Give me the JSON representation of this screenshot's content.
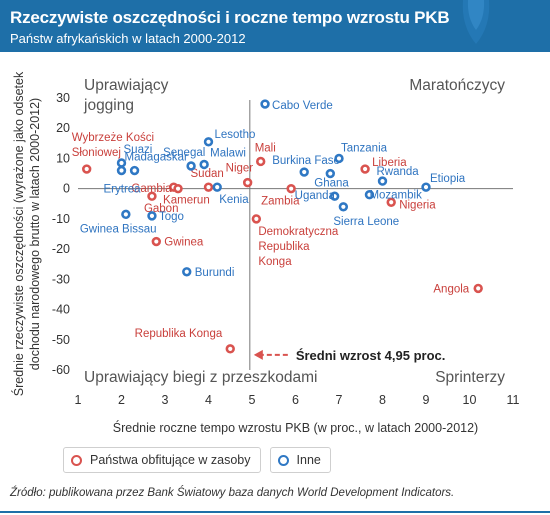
{
  "header": {
    "title": "Rzeczywiste oszczędności i roczne tempo wzrostu PKB",
    "subtitle": "Państw afrykańskich w latach 2000-2012"
  },
  "colors": {
    "header_bg": "#1e6fa8",
    "resource": "#d9534f",
    "other": "#2f78c4",
    "label_resource": "#c9403c",
    "label_other": "#2f74c0",
    "arrow": "#d9534f"
  },
  "chart_data": {
    "type": "scatter",
    "xlabel": "Średnie roczne tempo wzrostu PKB (w proc., w latach 2000-2012)",
    "ylabel": "Średnie rzeczywiste oszczędności (wyrażone jako odsetek dochodu narodowego brutto w latach 2000-2012)",
    "xlim": [
      1,
      11
    ],
    "ylim": [
      -60,
      30
    ],
    "xticks": [
      1,
      2,
      3,
      4,
      5,
      6,
      7,
      8,
      9,
      10,
      11
    ],
    "yticks": [
      30,
      20,
      10,
      0,
      -10,
      -20,
      -30,
      -40,
      -50,
      -60
    ],
    "grid": false,
    "reference_lines": {
      "x": 4.95,
      "y": 0
    },
    "quadrants": {
      "top_left": [
        "Uprawiający",
        "jogging"
      ],
      "top_right": "Maratończycy",
      "bottom_left": "Uprawiający biegi z przeszkodami",
      "bottom_right": "Sprinterzy"
    },
    "annotation": {
      "text": "Średni wzrost 4,95 proc.",
      "x": 4.95,
      "y": -55
    },
    "legend": {
      "placement": "bottom-left",
      "items": [
        "Państwa obfitujące w zasoby",
        "Inne"
      ]
    },
    "series": [
      {
        "name": "Państwa obfitujące w zasoby",
        "points": [
          {
            "label": "Wybrzeże Kości Słoniowej",
            "x": 1.2,
            "y": 6.5
          },
          {
            "label": "Gambia",
            "x": 3.2,
            "y": 0.5
          },
          {
            "label": "Gabon",
            "x": 2.7,
            "y": -2.5
          },
          {
            "label": "Sudan",
            "x": 4.0,
            "y": 0.5
          },
          {
            "label": "Kamerun",
            "x": 3.3,
            "y": 0
          },
          {
            "label": "Niger",
            "x": 4.9,
            "y": 2
          },
          {
            "label": "Gwinea",
            "x": 2.8,
            "y": -17.5
          },
          {
            "label": "Mali",
            "x": 5.2,
            "y": 9
          },
          {
            "label": "Zambia",
            "x": 5.9,
            "y": 0
          },
          {
            "label": "Demokratyczna Republika Konga",
            "x": 5.1,
            "y": -10
          },
          {
            "label": "Republika Konga",
            "x": 4.5,
            "y": -53
          },
          {
            "label": "Liberia",
            "x": 7.6,
            "y": 6.5
          },
          {
            "label": "Nigeria",
            "x": 8.2,
            "y": -4.5
          },
          {
            "label": "Angola",
            "x": 10.2,
            "y": -33
          }
        ]
      },
      {
        "name": "Inne",
        "points": [
          {
            "label": "Erytrea",
            "x": 2.0,
            "y": 6
          },
          {
            "label": "Suazi",
            "x": 2.0,
            "y": 8.5
          },
          {
            "label": "Madagaskar",
            "x": 2.3,
            "y": 6
          },
          {
            "label": "Senegal",
            "x": 3.6,
            "y": 7.5
          },
          {
            "label": "Lesotho",
            "x": 4.0,
            "y": 15.5
          },
          {
            "label": "Malawi",
            "x": 3.9,
            "y": 8
          },
          {
            "label": "Kenia",
            "x": 4.2,
            "y": 0.5
          },
          {
            "label": "Gwinea Bissau",
            "x": 2.1,
            "y": -8.5
          },
          {
            "label": "Togo",
            "x": 2.7,
            "y": -9
          },
          {
            "label": "Burundi",
            "x": 3.5,
            "y": -27.5
          },
          {
            "label": "Cabo Verde",
            "x": 5.3,
            "y": 28
          },
          {
            "label": "Burkina Faso",
            "x": 6.2,
            "y": 5.5
          },
          {
            "label": "Uganda",
            "x": 6.9,
            "y": -2.5
          },
          {
            "label": "Ghana",
            "x": 6.8,
            "y": 5
          },
          {
            "label": "Tanzania",
            "x": 7.0,
            "y": 10
          },
          {
            "label": "Sierra Leone",
            "x": 7.1,
            "y": -6
          },
          {
            "label": "Rwanda",
            "x": 8.0,
            "y": 2.5
          },
          {
            "label": "Mozambik",
            "x": 7.7,
            "y": -2
          },
          {
            "label": "Etiopia",
            "x": 9.0,
            "y": 0.5
          }
        ]
      }
    ]
  },
  "source": "Źródło: publikowana przez Bank Światowy baza danych World Development Indicators."
}
